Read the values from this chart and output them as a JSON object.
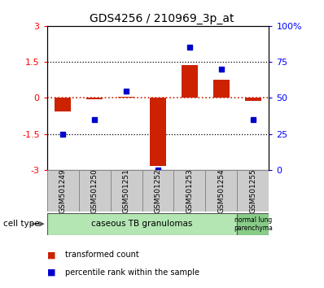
{
  "title": "GDS4256 / 210969_3p_at",
  "samples": [
    "GSM501249",
    "GSM501250",
    "GSM501251",
    "GSM501252",
    "GSM501253",
    "GSM501254",
    "GSM501255"
  ],
  "transformed_count": [
    -0.55,
    -0.05,
    0.05,
    -2.85,
    1.38,
    0.75,
    -0.12
  ],
  "percentile_rank_pct": [
    25,
    35,
    55,
    0,
    85,
    70,
    35
  ],
  "ylim": [
    -3,
    3
  ],
  "y_left_ticks": [
    -3,
    -1.5,
    0,
    1.5,
    3
  ],
  "y_left_labels": [
    "-3",
    "-1.5",
    "0",
    "1.5",
    "3"
  ],
  "y_right_ticks": [
    -3,
    -1.5,
    0,
    1.5,
    3
  ],
  "y_right_labels": [
    "0",
    "25",
    "50",
    "75",
    "100%"
  ],
  "bar_color": "#cc2200",
  "dot_color": "#0000cc",
  "zero_line_color": "#cc2200",
  "dotted_line_color": "#000000",
  "group1_label": "caseous TB granulomas",
  "group1_count": 6,
  "group2_label": "normal lung\nparenchyma",
  "group2_count": 1,
  "group1_color": "#b3e6b3",
  "group2_color": "#88cc88",
  "cell_type_label": "cell type",
  "legend_red": "transformed count",
  "legend_blue": "percentile rank within the sample",
  "bg_color": "#ffffff",
  "plot_bg": "#ffffff",
  "sample_box_color": "#cccccc",
  "bar_width": 0.5
}
